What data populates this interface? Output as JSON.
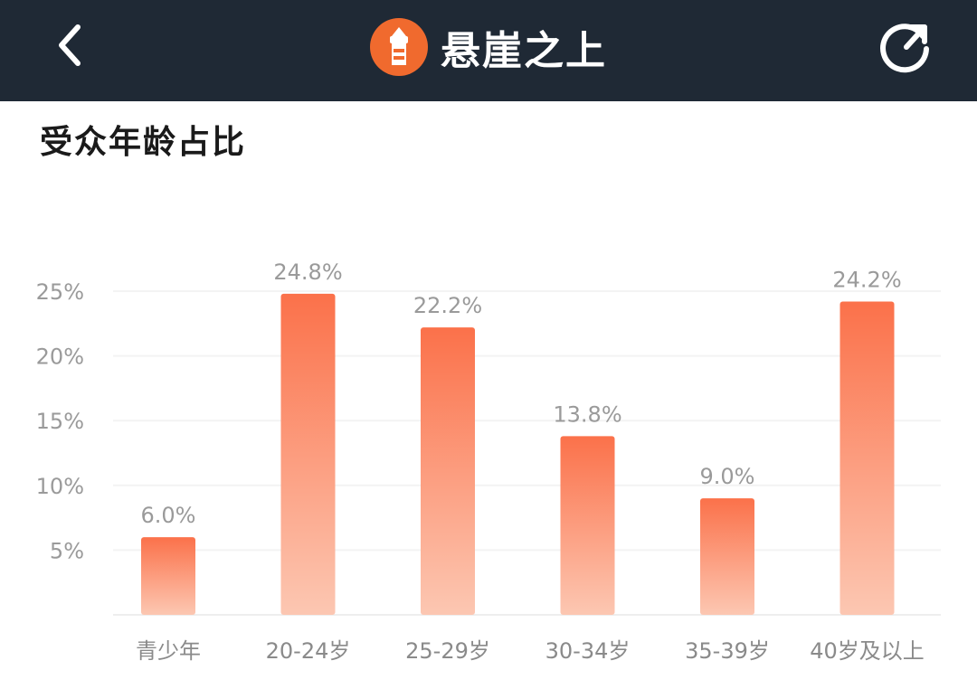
{
  "header": {
    "title": "悬崖之上",
    "back_icon": "chevron-left-icon",
    "share_icon": "share-refresh-icon",
    "logo_icon": "app-logo-icon",
    "background_color": "#1f2935",
    "logo_color": "#f06a2e"
  },
  "section": {
    "title": "受众年龄占比"
  },
  "chart_data": {
    "type": "bar",
    "categories": [
      "青少年",
      "20-24岁",
      "25-29岁",
      "30-34岁",
      "35-39岁",
      "40岁及以上"
    ],
    "values": [
      6.0,
      24.8,
      22.2,
      13.8,
      9.0,
      24.2
    ],
    "data_labels": [
      "6.0%",
      "24.8%",
      "22.2%",
      "13.8%",
      "9.0%",
      "24.2%"
    ],
    "y_ticks": [
      5,
      10,
      15,
      20,
      25
    ],
    "y_tick_labels": [
      "5%",
      "10%",
      "15%",
      "20%",
      "25%"
    ],
    "ylim": [
      0,
      25
    ],
    "grid": true,
    "bar_color_top": "#fb714a",
    "bar_color_bottom": "#fcc7b2"
  }
}
